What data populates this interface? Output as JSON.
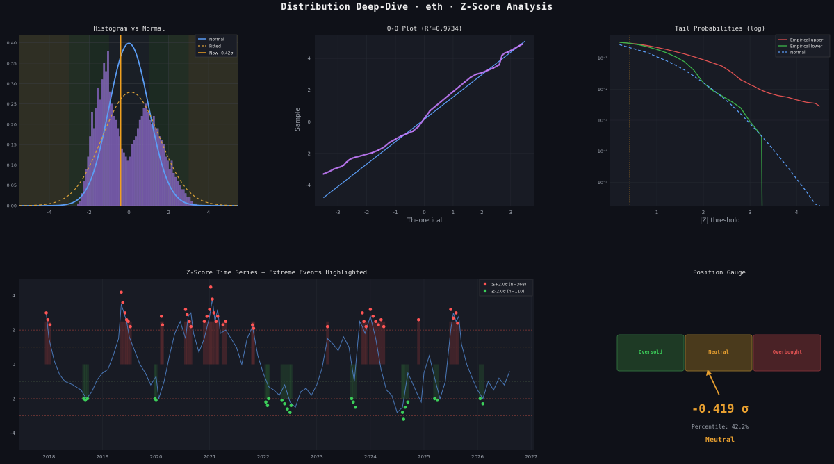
{
  "page": {
    "title": "Distribution Deep-Dive  ·  eth  ·  Z-Score Analysis"
  },
  "colors": {
    "background": "#0f1118",
    "panel": "#181b24",
    "normal": "#5b9df5",
    "fitted": "#d9a13a",
    "now": "#f0a020",
    "hist_bar": "#7a5cb0",
    "qq_points": "#c77dff",
    "emp_upper": "#e05252",
    "emp_lower": "#3cb54a",
    "zseries": "#4a78b8",
    "extreme_high": "#ff5555",
    "extreme_low": "#3ccf5a",
    "gauge_accent": "#e8a030"
  },
  "chart_data": [
    {
      "type": "bar",
      "title": "Histogram vs Normal",
      "xlabel": "",
      "ylabel": "",
      "xlim": [
        -5.5,
        5.5
      ],
      "ylim": [
        0,
        0.42
      ],
      "xticks": [
        "-4",
        "-2",
        "0",
        "2",
        "4"
      ],
      "yticks": [
        "0.00",
        "0.05",
        "0.10",
        "0.15",
        "0.20",
        "0.25",
        "0.30",
        "0.35",
        "0.40"
      ],
      "bins_x": [
        -2.55,
        -2.45,
        -2.35,
        -2.25,
        -2.15,
        -2.05,
        -1.95,
        -1.85,
        -1.75,
        -1.65,
        -1.55,
        -1.45,
        -1.35,
        -1.25,
        -1.15,
        -1.05,
        -0.95,
        -0.85,
        -0.75,
        -0.65,
        -0.55,
        -0.45,
        -0.35,
        -0.25,
        -0.15,
        -0.05,
        0.05,
        0.15,
        0.25,
        0.35,
        0.45,
        0.55,
        0.65,
        0.75,
        0.85,
        0.95,
        1.05,
        1.15,
        1.25,
        1.35,
        1.45,
        1.55,
        1.65,
        1.75,
        1.85,
        1.95,
        2.05,
        2.15,
        2.25,
        2.35,
        2.45,
        2.55,
        2.65,
        2.75,
        2.85,
        2.95,
        3.05,
        3.15,
        3.25,
        3.35
      ],
      "bins_density": [
        0.005,
        0.01,
        0.03,
        0.06,
        0.09,
        0.12,
        0.17,
        0.23,
        0.19,
        0.24,
        0.29,
        0.26,
        0.31,
        0.35,
        0.33,
        0.38,
        0.28,
        0.25,
        0.22,
        0.21,
        0.19,
        0.17,
        0.14,
        0.13,
        0.12,
        0.11,
        0.12,
        0.15,
        0.16,
        0.17,
        0.19,
        0.21,
        0.22,
        0.24,
        0.25,
        0.23,
        0.21,
        0.2,
        0.22,
        0.19,
        0.19,
        0.17,
        0.16,
        0.15,
        0.12,
        0.11,
        0.09,
        0.11,
        0.08,
        0.07,
        0.06,
        0.05,
        0.04,
        0.04,
        0.03,
        0.02,
        0.02,
        0.01,
        0.005,
        0.005
      ],
      "normal_mu": 0,
      "normal_sigma": 1,
      "fitted_mu": 0.1,
      "fitted_sigma": 1.43,
      "now_z": -0.42,
      "legend": [
        "Normal",
        "Fitted",
        "Now -0.42σ"
      ],
      "legend_position": "top-right"
    },
    {
      "type": "scatter",
      "title": "Q-Q Plot  (R²=0.9734)",
      "xlabel": "Theoretical",
      "ylabel": "Sample",
      "xlim": [
        -3.8,
        3.8
      ],
      "ylim": [
        -5.3,
        5.5
      ],
      "xticks": [
        "-3",
        "-2",
        "-1",
        "0",
        "1",
        "2",
        "3"
      ],
      "yticks": [
        "-4",
        "-2",
        "0",
        "2",
        "4"
      ],
      "theoretical": [
        -3.5,
        -3.3,
        -3.15,
        -3.0,
        -2.9,
        -2.8,
        -2.7,
        -2.6,
        -2.5,
        -2.4,
        -2.2,
        -2.0,
        -1.8,
        -1.6,
        -1.4,
        -1.2,
        -1.0,
        -0.8,
        -0.6,
        -0.4,
        -0.2,
        0.0,
        0.2,
        0.4,
        0.6,
        0.8,
        1.0,
        1.2,
        1.4,
        1.6,
        1.8,
        2.0,
        2.2,
        2.4,
        2.6,
        2.7,
        2.8,
        2.9,
        3.0,
        3.1,
        3.2,
        3.3,
        3.4
      ],
      "sample": [
        -3.3,
        -3.15,
        -3.0,
        -2.9,
        -2.85,
        -2.75,
        -2.55,
        -2.4,
        -2.3,
        -2.25,
        -2.15,
        -2.05,
        -1.95,
        -1.8,
        -1.6,
        -1.3,
        -1.1,
        -0.9,
        -0.75,
        -0.6,
        -0.3,
        0.2,
        0.7,
        1.0,
        1.3,
        1.6,
        1.9,
        2.2,
        2.5,
        2.8,
        3.0,
        3.1,
        3.25,
        3.4,
        3.6,
        4.2,
        4.35,
        4.4,
        4.5,
        4.6,
        4.7,
        4.8,
        4.9
      ],
      "ref_line": [
        [
          -3.5,
          -4.8
        ],
        [
          3.5,
          5.1
        ]
      ],
      "legend_position": "none"
    },
    {
      "type": "line",
      "title": "Tail Probabilities (log)",
      "xlabel": "|Z| threshold",
      "ylabel": "",
      "xlim": [
        0.0,
        4.7
      ],
      "ylim_log10": [
        -5.75,
        -0.25
      ],
      "yscale": "log",
      "xticks": [
        "1",
        "2",
        "3",
        "4"
      ],
      "yticks": [
        "10⁻⁵",
        "10⁻⁴",
        "10⁻³",
        "10⁻²",
        "10⁻¹"
      ],
      "now_abs_z": 0.42,
      "series": [
        {
          "name": "Empirical upper",
          "x": [
            0.2,
            0.4,
            0.6,
            0.8,
            1.0,
            1.2,
            1.4,
            1.6,
            1.8,
            2.0,
            2.2,
            2.4,
            2.6,
            2.8,
            2.9,
            3.0,
            3.1,
            3.2,
            3.3,
            3.4,
            3.6,
            3.8,
            4.0,
            4.2,
            4.4,
            4.5
          ],
          "y": [
            0.32,
            0.3,
            0.28,
            0.25,
            0.22,
            0.19,
            0.16,
            0.135,
            0.11,
            0.088,
            0.07,
            0.055,
            0.035,
            0.02,
            0.017,
            0.014,
            0.012,
            0.01,
            0.0085,
            0.0075,
            0.0062,
            0.0055,
            0.0045,
            0.0038,
            0.0035,
            0.0028
          ]
        },
        {
          "name": "Empirical lower",
          "x": [
            0.2,
            0.4,
            0.6,
            0.8,
            1.0,
            1.2,
            1.4,
            1.6,
            1.8,
            1.9,
            2.0,
            2.1,
            2.2,
            2.4,
            2.6,
            2.8,
            2.9,
            3.0,
            3.1,
            3.2,
            3.25,
            3.26
          ],
          "y": [
            0.32,
            0.3,
            0.27,
            0.23,
            0.19,
            0.15,
            0.11,
            0.075,
            0.04,
            0.025,
            0.016,
            0.012,
            0.009,
            0.006,
            0.004,
            0.0025,
            0.0015,
            0.0009,
            0.0006,
            0.00038,
            0.0003,
            1.8e-06
          ]
        },
        {
          "name": "Normal",
          "x": [
            0.2,
            0.4,
            0.6,
            0.8,
            1.0,
            1.2,
            1.4,
            1.6,
            1.8,
            2.0,
            2.2,
            2.4,
            2.6,
            2.8,
            3.0,
            3.2,
            3.4,
            3.6,
            3.8,
            4.0,
            4.2,
            4.4,
            4.5
          ],
          "y": [
            0.27,
            0.22,
            0.18,
            0.15,
            0.11,
            0.083,
            0.059,
            0.041,
            0.026,
            0.016,
            0.0097,
            0.0056,
            0.0031,
            0.0016,
            0.00078,
            0.00037,
            0.00017,
            7.5e-05,
            3.2e-05,
            1.3e-05,
            5.3e-06,
            2e-06,
            1.2e-06
          ]
        }
      ],
      "legend_position": "top-right"
    },
    {
      "type": "line",
      "title": "Z-Score Time Series  —  Extreme Events Highlighted",
      "xlabel": "",
      "ylabel": "",
      "xlim": [
        2017.45,
        2027.05
      ],
      "ylim": [
        -5.0,
        5.0
      ],
      "xticks": [
        "2018",
        "2019",
        "2020",
        "2021",
        "2022",
        "2023",
        "2024",
        "2025",
        "2026",
        "2027"
      ],
      "yticks": [
        "-4",
        "-2",
        "0",
        "2",
        "4"
      ],
      "hlines": [
        3,
        2,
        1,
        -1,
        -2,
        -3
      ],
      "series": [
        {
          "name": "z",
          "x": [
            2017.95,
            2018.0,
            2018.1,
            2018.2,
            2018.3,
            2018.45,
            2018.6,
            2018.7,
            2018.8,
            2018.9,
            2019.0,
            2019.1,
            2019.2,
            2019.3,
            2019.35,
            2019.4,
            2019.45,
            2019.5,
            2019.6,
            2019.7,
            2019.8,
            2019.9,
            2020.0,
            2020.05,
            2020.15,
            2020.25,
            2020.35,
            2020.45,
            2020.55,
            2020.6,
            2020.65,
            2020.7,
            2020.8,
            2020.9,
            2021.0,
            2021.05,
            2021.1,
            2021.15,
            2021.2,
            2021.3,
            2021.4,
            2021.5,
            2021.6,
            2021.7,
            2021.8,
            2021.9,
            2022.0,
            2022.1,
            2022.2,
            2022.3,
            2022.4,
            2022.5,
            2022.6,
            2022.7,
            2022.8,
            2022.9,
            2023.0,
            2023.1,
            2023.2,
            2023.3,
            2023.4,
            2023.5,
            2023.6,
            2023.7,
            2023.8,
            2023.85,
            2023.9,
            2024.0,
            2024.1,
            2024.2,
            2024.3,
            2024.4,
            2024.5,
            2024.6,
            2024.7,
            2024.8,
            2024.9,
            2024.95,
            2025.0,
            2025.1,
            2025.2,
            2025.3,
            2025.4,
            2025.5,
            2025.55,
            2025.6,
            2025.65,
            2025.7,
            2025.8,
            2025.9,
            2026.0,
            2026.1,
            2026.2,
            2026.3,
            2026.4,
            2026.5,
            2026.6
          ],
          "y": [
            3.0,
            1.5,
            0.2,
            -0.6,
            -1.0,
            -1.2,
            -1.5,
            -2.0,
            -1.6,
            -0.9,
            -0.5,
            -0.3,
            0.5,
            1.5,
            3.5,
            3.0,
            2.5,
            1.6,
            0.8,
            0.0,
            -0.5,
            -1.2,
            -0.7,
            -2.0,
            -1.0,
            0.5,
            1.8,
            2.5,
            1.5,
            2.8,
            3.0,
            1.8,
            0.7,
            1.5,
            2.8,
            3.8,
            2.5,
            3.2,
            1.8,
            2.0,
            1.5,
            1.0,
            0.0,
            1.5,
            2.2,
            0.5,
            -0.5,
            -1.3,
            -1.5,
            -1.8,
            -1.2,
            -2.2,
            -2.5,
            -1.6,
            -1.4,
            -1.8,
            -1.2,
            -0.2,
            1.5,
            1.2,
            0.8,
            1.6,
            1.0,
            -1.0,
            2.5,
            2.2,
            1.8,
            2.8,
            1.5,
            -0.3,
            -1.5,
            -1.8,
            -2.8,
            -2.5,
            -0.5,
            -1.2,
            -1.9,
            -2.2,
            -0.5,
            0.5,
            -0.8,
            -2.0,
            -1.0,
            2.0,
            3.0,
            2.5,
            2.8,
            1.2,
            0.0,
            -0.8,
            -1.5,
            -2.0,
            -1.0,
            -1.5,
            -0.8,
            -1.2,
            -0.4
          ]
        },
        {
          "name": "≥+2.0σ  (n=368)",
          "x": [
            2017.95,
            2017.98,
            2018.02,
            2019.35,
            2019.38,
            2019.42,
            2019.45,
            2019.48,
            2019.52,
            2020.1,
            2020.12,
            2020.55,
            2020.58,
            2020.62,
            2020.65,
            2020.9,
            2020.95,
            2021.0,
            2021.02,
            2021.05,
            2021.08,
            2021.12,
            2021.15,
            2021.25,
            2021.3,
            2021.8,
            2021.82,
            2023.2,
            2023.85,
            2023.88,
            2023.92,
            2024.0,
            2024.05,
            2024.1,
            2024.15,
            2024.2,
            2024.25,
            2024.9,
            2025.5,
            2025.55,
            2025.6,
            2025.63
          ],
          "y": [
            3.0,
            2.6,
            2.3,
            4.2,
            3.6,
            3.0,
            2.6,
            2.5,
            2.2,
            2.8,
            2.3,
            3.2,
            2.9,
            2.5,
            2.2,
            2.5,
            2.8,
            3.2,
            4.5,
            3.8,
            3.0,
            2.5,
            2.8,
            2.3,
            2.5,
            2.3,
            2.1,
            2.2,
            3.0,
            2.5,
            2.2,
            3.2,
            2.8,
            2.5,
            2.3,
            2.6,
            2.2,
            2.6,
            3.2,
            2.7,
            3.0,
            2.4
          ]
        },
        {
          "name": "≤-2.0σ  (n=110)",
          "x": [
            2018.65,
            2018.68,
            2018.72,
            2019.98,
            2020.0,
            2022.05,
            2022.08,
            2022.1,
            2022.35,
            2022.4,
            2022.45,
            2022.5,
            2022.52,
            2023.65,
            2023.68,
            2023.72,
            2024.6,
            2024.62,
            2024.65,
            2024.7,
            2025.2,
            2025.25,
            2026.05,
            2026.1
          ],
          "y": [
            -2.0,
            -2.1,
            -2.0,
            -2.0,
            -2.1,
            -2.2,
            -2.4,
            -2.0,
            -2.1,
            -2.3,
            -2.6,
            -2.8,
            -2.4,
            -2.0,
            -2.2,
            -2.5,
            -2.8,
            -3.2,
            -2.5,
            -2.2,
            -2.0,
            -2.1,
            -2.0,
            -2.3
          ]
        }
      ],
      "legend_position": "top-right"
    }
  ],
  "gauge": {
    "title": "Position Gauge",
    "zones": [
      {
        "label": "Oversold",
        "color": "#3ccf5a"
      },
      {
        "label": "Neutral",
        "color": "#e8a030"
      },
      {
        "label": "Overbought",
        "color": "#e05252"
      }
    ],
    "value": "-0.419 σ",
    "percentile": "Percentile: 42.2%",
    "state": "Neutral"
  }
}
